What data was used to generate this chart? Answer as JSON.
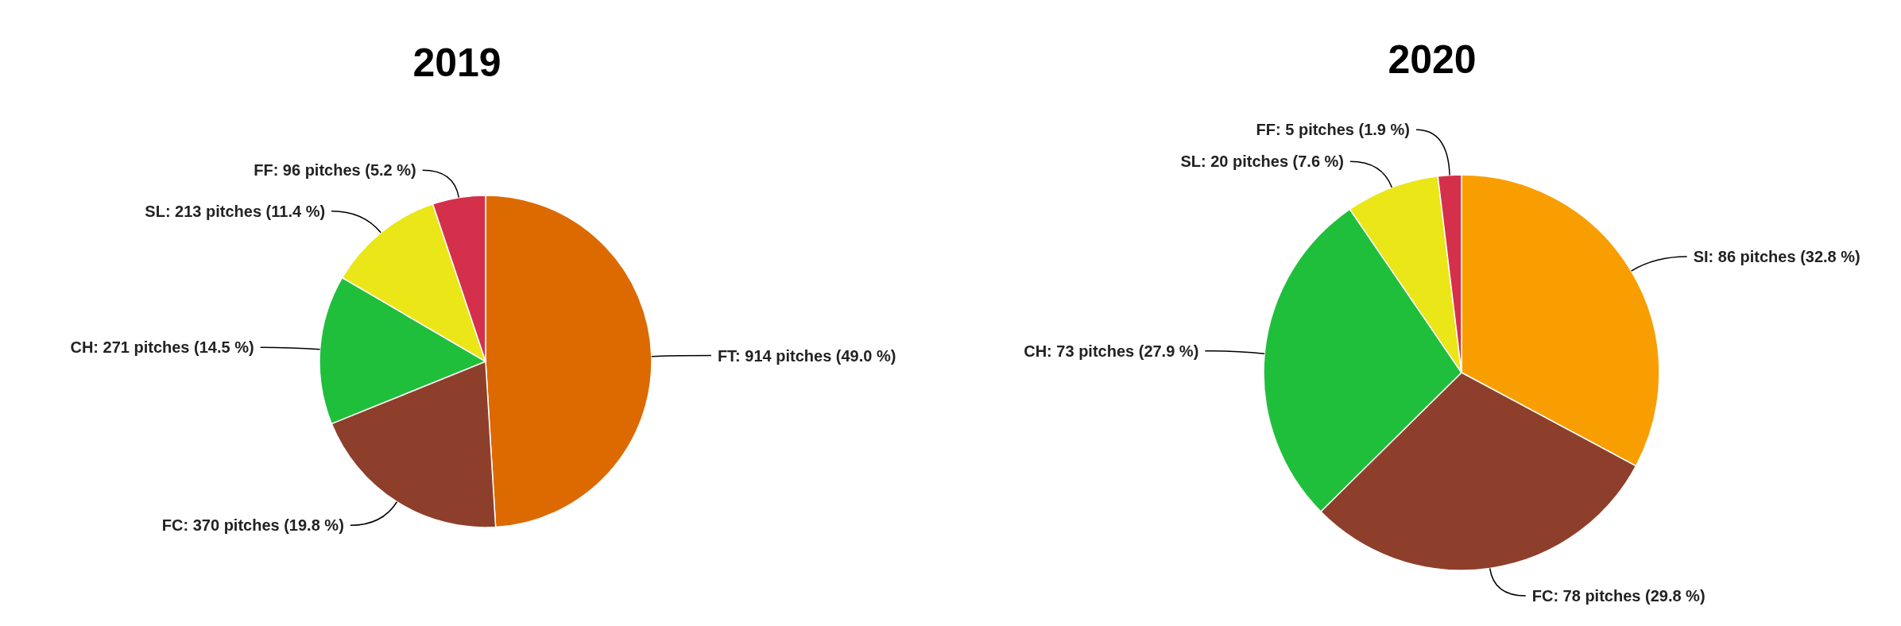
{
  "chart_data": [
    {
      "type": "pie",
      "title": "2019",
      "categories": [
        "FT: 914 pitches (49.0 %)",
        "FC: 370 pitches (19.8 %)",
        "CH: 271 pitches (14.5 %)",
        "SL: 213 pitches (11.4 %)",
        "FF: 96 pitches (5.2 %)"
      ],
      "values": [
        914,
        370,
        271,
        213,
        96
      ],
      "colors": [
        "#dd6a00",
        "#8e3f2b",
        "#1fbf3c",
        "#eae617",
        "#d4304c"
      ]
    },
    {
      "type": "pie",
      "title": "2020",
      "categories": [
        "SI: 86 pitches (32.8 %)",
        "FC: 78 pitches (29.8 %)",
        "CH: 73 pitches (27.9 %)",
        "SL: 20 pitches (7.6 %)",
        "FF: 5 pitches (1.9 %)"
      ],
      "values": [
        86,
        78,
        73,
        20,
        5
      ],
      "colors": [
        "#f99e00",
        "#8e3f2b",
        "#1fbf3c",
        "#eae617",
        "#d4304c"
      ]
    }
  ]
}
